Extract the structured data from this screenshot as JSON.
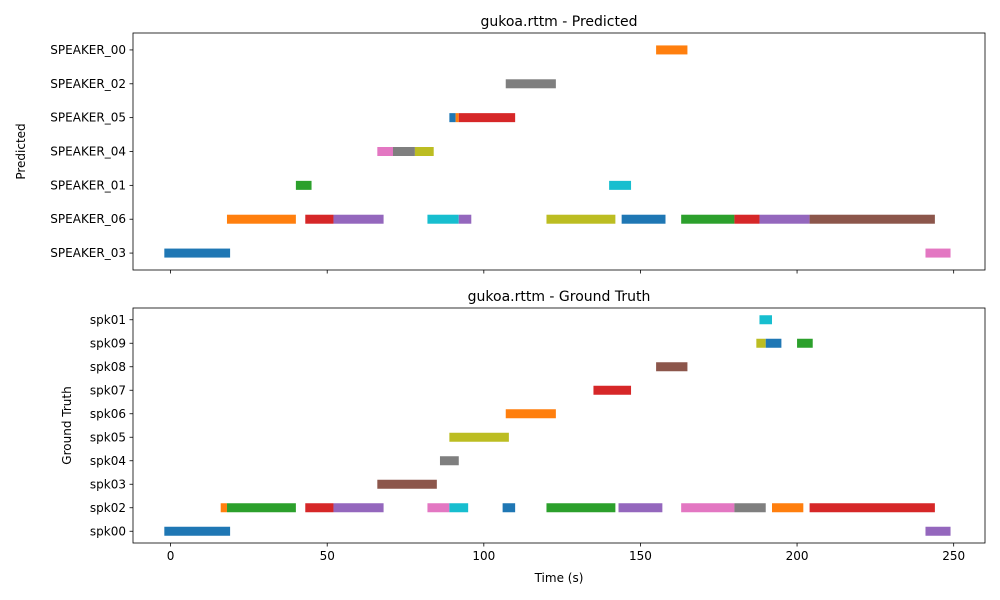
{
  "chart_data": [
    {
      "type": "timeline",
      "title": "gukoa.rttm - Predicted",
      "ylabel": "Predicted",
      "xlabel": "",
      "xlim": [
        -12,
        260
      ],
      "xticks": [
        0,
        50,
        100,
        150,
        200,
        250
      ],
      "categories": [
        "SPEAKER_03",
        "SPEAKER_06",
        "SPEAKER_01",
        "SPEAKER_04",
        "SPEAKER_05",
        "SPEAKER_02",
        "SPEAKER_00"
      ],
      "segments": [
        {
          "row": "SPEAKER_00",
          "start": 155,
          "end": 165,
          "color": "#ff7f0e"
        },
        {
          "row": "SPEAKER_02",
          "start": 107,
          "end": 123,
          "color": "#7f7f7f"
        },
        {
          "row": "SPEAKER_05",
          "start": 89,
          "end": 91,
          "color": "#1f77b4"
        },
        {
          "row": "SPEAKER_05",
          "start": 91,
          "end": 92,
          "color": "#ff7f0e"
        },
        {
          "row": "SPEAKER_05",
          "start": 92,
          "end": 110,
          "color": "#d62728"
        },
        {
          "row": "SPEAKER_04",
          "start": 66,
          "end": 71,
          "color": "#e377c2"
        },
        {
          "row": "SPEAKER_04",
          "start": 71,
          "end": 78,
          "color": "#7f7f7f"
        },
        {
          "row": "SPEAKER_04",
          "start": 78,
          "end": 84,
          "color": "#bcbd22"
        },
        {
          "row": "SPEAKER_01",
          "start": 40,
          "end": 45,
          "color": "#2ca02c"
        },
        {
          "row": "SPEAKER_01",
          "start": 140,
          "end": 147,
          "color": "#17becf"
        },
        {
          "row": "SPEAKER_06",
          "start": 18,
          "end": 40,
          "color": "#ff7f0e"
        },
        {
          "row": "SPEAKER_06",
          "start": 43,
          "end": 52,
          "color": "#d62728"
        },
        {
          "row": "SPEAKER_06",
          "start": 52,
          "end": 68,
          "color": "#9467bd"
        },
        {
          "row": "SPEAKER_06",
          "start": 82,
          "end": 92,
          "color": "#17becf"
        },
        {
          "row": "SPEAKER_06",
          "start": 92,
          "end": 96,
          "color": "#9467bd"
        },
        {
          "row": "SPEAKER_06",
          "start": 120,
          "end": 142,
          "color": "#bcbd22"
        },
        {
          "row": "SPEAKER_06",
          "start": 144,
          "end": 158,
          "color": "#1f77b4"
        },
        {
          "row": "SPEAKER_06",
          "start": 163,
          "end": 180,
          "color": "#2ca02c"
        },
        {
          "row": "SPEAKER_06",
          "start": 180,
          "end": 188,
          "color": "#d62728"
        },
        {
          "row": "SPEAKER_06",
          "start": 188,
          "end": 204,
          "color": "#9467bd"
        },
        {
          "row": "SPEAKER_06",
          "start": 204,
          "end": 244,
          "color": "#8c564b"
        },
        {
          "row": "SPEAKER_03",
          "start": -2,
          "end": 19,
          "color": "#1f77b4"
        },
        {
          "row": "SPEAKER_03",
          "start": 241,
          "end": 249,
          "color": "#e377c2"
        }
      ]
    },
    {
      "type": "timeline",
      "title": "gukoa.rttm - Ground Truth",
      "ylabel": "Ground Truth",
      "xlabel": "Time (s)",
      "xlim": [
        -12,
        260
      ],
      "xticks": [
        0,
        50,
        100,
        150,
        200,
        250
      ],
      "categories": [
        "spk00",
        "spk02",
        "spk03",
        "spk04",
        "spk05",
        "spk06",
        "spk07",
        "spk08",
        "spk09",
        "spk01"
      ],
      "segments": [
        {
          "row": "spk01",
          "start": 188,
          "end": 192,
          "color": "#17becf"
        },
        {
          "row": "spk09",
          "start": 187,
          "end": 190,
          "color": "#bcbd22"
        },
        {
          "row": "spk09",
          "start": 190,
          "end": 195,
          "color": "#1f77b4"
        },
        {
          "row": "spk09",
          "start": 200,
          "end": 205,
          "color": "#2ca02c"
        },
        {
          "row": "spk08",
          "start": 155,
          "end": 165,
          "color": "#8c564b"
        },
        {
          "row": "spk07",
          "start": 135,
          "end": 147,
          "color": "#d62728"
        },
        {
          "row": "spk06",
          "start": 107,
          "end": 123,
          "color": "#ff7f0e"
        },
        {
          "row": "spk05",
          "start": 89,
          "end": 108,
          "color": "#bcbd22"
        },
        {
          "row": "spk04",
          "start": 86,
          "end": 92,
          "color": "#7f7f7f"
        },
        {
          "row": "spk03",
          "start": 66,
          "end": 85,
          "color": "#8c564b"
        },
        {
          "row": "spk02",
          "start": 16,
          "end": 18,
          "color": "#ff7f0e"
        },
        {
          "row": "spk02",
          "start": 18,
          "end": 40,
          "color": "#2ca02c"
        },
        {
          "row": "spk02",
          "start": 43,
          "end": 52,
          "color": "#d62728"
        },
        {
          "row": "spk02",
          "start": 52,
          "end": 68,
          "color": "#9467bd"
        },
        {
          "row": "spk02",
          "start": 82,
          "end": 89,
          "color": "#e377c2"
        },
        {
          "row": "spk02",
          "start": 89,
          "end": 95,
          "color": "#17becf"
        },
        {
          "row": "spk02",
          "start": 106,
          "end": 110,
          "color": "#1f77b4"
        },
        {
          "row": "spk02",
          "start": 120,
          "end": 142,
          "color": "#2ca02c"
        },
        {
          "row": "spk02",
          "start": 143,
          "end": 157,
          "color": "#9467bd"
        },
        {
          "row": "spk02",
          "start": 163,
          "end": 180,
          "color": "#e377c2"
        },
        {
          "row": "spk02",
          "start": 180,
          "end": 190,
          "color": "#7f7f7f"
        },
        {
          "row": "spk02",
          "start": 192,
          "end": 202,
          "color": "#ff7f0e"
        },
        {
          "row": "spk02",
          "start": 204,
          "end": 244,
          "color": "#d62728"
        },
        {
          "row": "spk00",
          "start": -2,
          "end": 19,
          "color": "#1f77b4"
        },
        {
          "row": "spk00",
          "start": 241,
          "end": 249,
          "color": "#9467bd"
        }
      ]
    }
  ]
}
